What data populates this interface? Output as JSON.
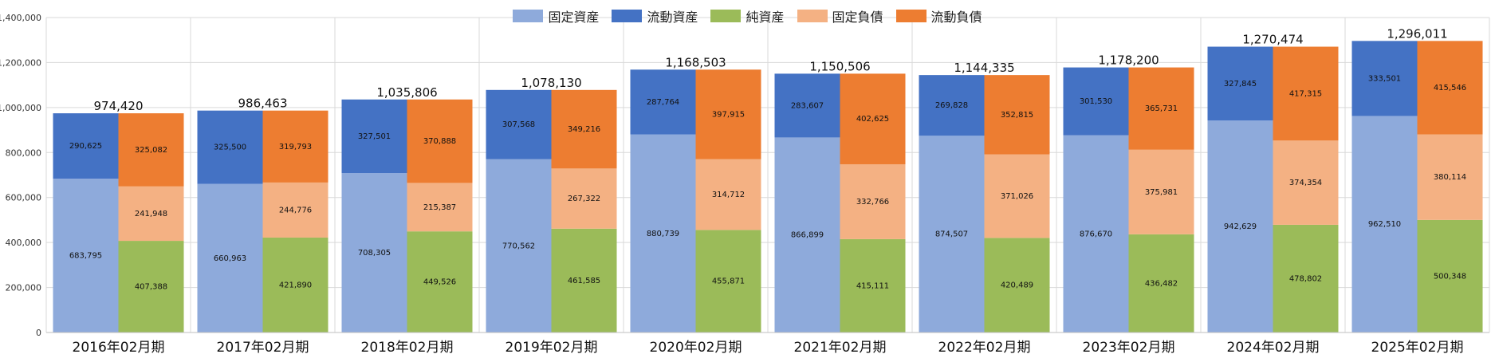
{
  "chart_data": {
    "type": "bar",
    "stacked": true,
    "ylim": [
      0,
      1400000
    ],
    "yticks": [
      "0",
      "200,000",
      "400,000",
      "600,000",
      "800,000",
      "1,000,000",
      "1,200,000",
      "1,400,000"
    ],
    "ytick_values": [
      0,
      200000,
      400000,
      600000,
      800000,
      1000000,
      1200000,
      1400000
    ],
    "grid": true,
    "legend_position": "top-center",
    "categories": [
      "2016年02月期",
      "2017年02月期",
      "2018年02月期",
      "2019年02月期",
      "2020年02月期",
      "2021年02月期",
      "2022年02月期",
      "2023年02月期",
      "2024年02月期",
      "2025年02月期"
    ],
    "legend": [
      {
        "name": "固定資産",
        "color": "#8eaadb"
      },
      {
        "name": "流動資産",
        "color": "#4472c4"
      },
      {
        "name": "純資産",
        "color": "#9bbb59"
      },
      {
        "name": "固定負債",
        "color": "#f4b183"
      },
      {
        "name": "流動負債",
        "color": "#ed7d31"
      }
    ],
    "asset_stack": {
      "series": [
        {
          "name": "固定資産",
          "color": "#8eaadb",
          "values": [
            683795,
            660963,
            708305,
            770562,
            880739,
            866899,
            874507,
            876670,
            942629,
            962510
          ],
          "labels": [
            "683,795",
            "660,963",
            "708,305",
            "770,562",
            "880,739",
            "866,899",
            "874,507",
            "876,670",
            "942,629",
            "962,510"
          ]
        },
        {
          "name": "流動資産",
          "color": "#4472c4",
          "values": [
            290625,
            325500,
            327501,
            307568,
            287764,
            283607,
            269828,
            301530,
            327845,
            333501
          ],
          "labels": [
            "290,625",
            "325,500",
            "327,501",
            "307,568",
            "287,764",
            "283,607",
            "269,828",
            "301,530",
            "327,845",
            "333,501"
          ]
        }
      ]
    },
    "liability_stack": {
      "series": [
        {
          "name": "純資産",
          "color": "#9bbb59",
          "values": [
            407388,
            421890,
            449526,
            461585,
            455871,
            415111,
            420489,
            436482,
            478802,
            500348
          ],
          "labels": [
            "407,388",
            "421,890",
            "449,526",
            "461,585",
            "455,871",
            "415,111",
            "420,489",
            "436,482",
            "478,802",
            "500,348"
          ]
        },
        {
          "name": "固定負債",
          "color": "#f4b183",
          "values": [
            241948,
            244776,
            215387,
            267322,
            314712,
            332766,
            371026,
            375981,
            374354,
            380114
          ],
          "labels": [
            "241,948",
            "244,776",
            "215,387",
            "267,322",
            "314,712",
            "332,766",
            "371,026",
            "375,981",
            "374,354",
            "380,114"
          ]
        },
        {
          "name": "流動負債",
          "color": "#ed7d31",
          "values": [
            325082,
            319793,
            370888,
            349216,
            397915,
            402625,
            352815,
            365731,
            417315,
            415546
          ],
          "labels": [
            "325,082",
            "319,793",
            "370,888",
            "349,216",
            "397,915",
            "402,625",
            "352,815",
            "365,731",
            "417,315",
            "415,546"
          ]
        }
      ]
    },
    "totals": [
      974420,
      986463,
      1035806,
      1078130,
      1168503,
      1150506,
      1144335,
      1178200,
      1270474,
      1296011
    ],
    "total_labels": [
      "974,420",
      "986,463",
      "1,035,806",
      "1,078,130",
      "1,168,503",
      "1,150,506",
      "1,144,335",
      "1,178,200",
      "1,270,474",
      "1,296,011"
    ]
  }
}
